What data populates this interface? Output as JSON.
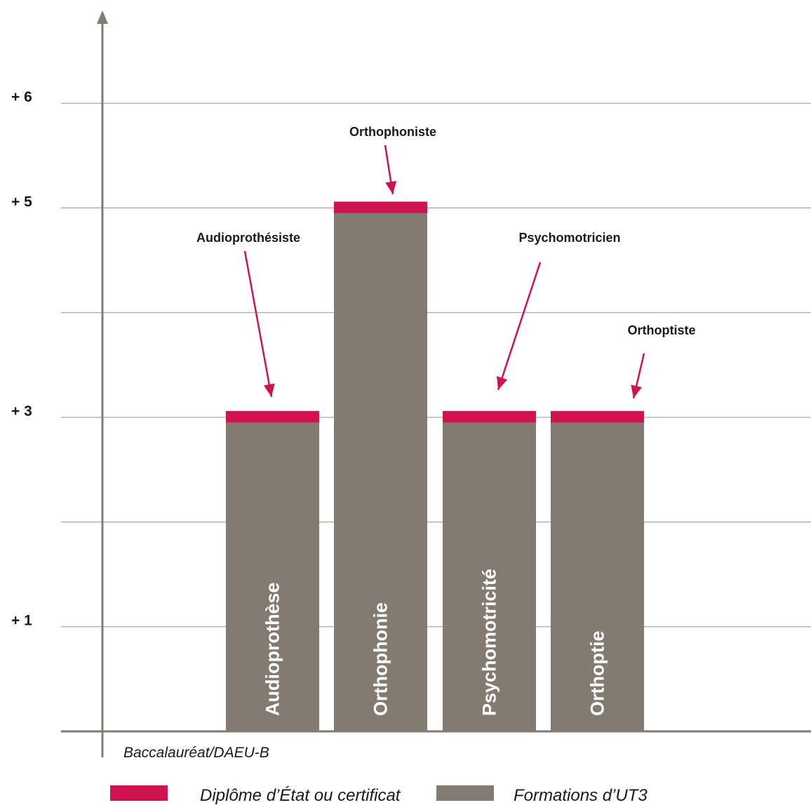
{
  "chart_data": {
    "type": "bar",
    "stacked": true,
    "categories": [
      "Audioprothèse",
      "Orthophonie",
      "Psychomotricité",
      "Orthoptie"
    ],
    "series": [
      {
        "name": "Formations d’UT3",
        "color": "#837b71",
        "values": [
          2.95,
          4.95,
          2.95,
          2.95
        ]
      },
      {
        "name": "Diplôme d’État ou certificat",
        "color": "#d0124f",
        "values": [
          0.11,
          0.11,
          0.11,
          0.11
        ]
      }
    ],
    "callouts": [
      "Audioprothésiste",
      "Orthophoniste",
      "Psychomotricien",
      "Orthoptiste"
    ],
    "yticks": [
      {
        "value": 1,
        "label": "+ 1"
      },
      {
        "value": 3,
        "label": "+ 3"
      },
      {
        "value": 5,
        "label": "+ 5"
      },
      {
        "value": 6,
        "label": "+ 6"
      }
    ],
    "gridlines": [
      1,
      2,
      3,
      4,
      5,
      6
    ],
    "ylim": [
      0,
      6
    ],
    "baseline_label": "Baccalauréat/DAEU-B",
    "legend": [
      {
        "label": "Diplôme d’État ou certificat",
        "color": "#d0124f"
      },
      {
        "label": "Formations d’UT3",
        "color": "#837b71"
      }
    ],
    "legend_position": "bottom",
    "grid": true,
    "colors": {
      "axis": "#837b71",
      "grid": "#9a948c",
      "arrow": "#d0124f"
    }
  }
}
